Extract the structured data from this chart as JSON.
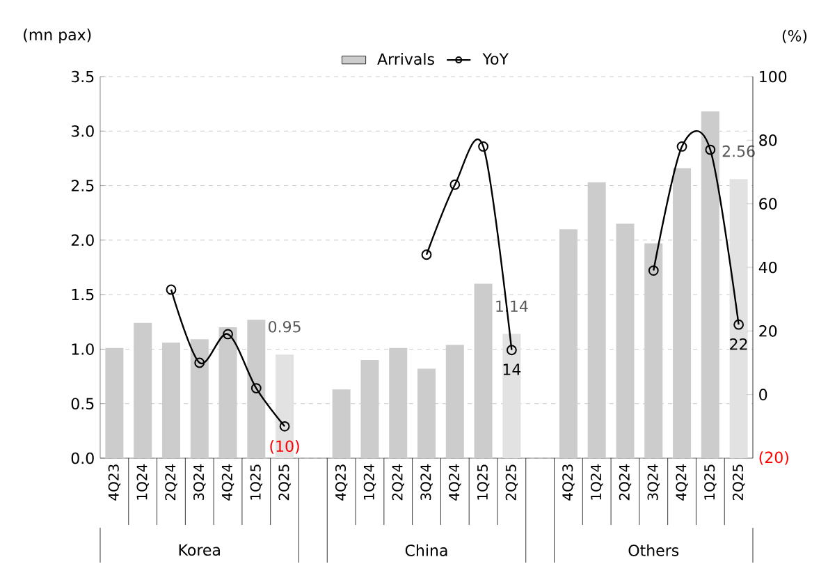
{
  "chart_data": {
    "type": "bar",
    "ylabel": "(mn pax)",
    "y2label": "(%)",
    "categories": [
      "4Q23",
      "1Q24",
      "2Q24",
      "3Q24",
      "4Q24",
      "1Q25",
      "2Q25",
      null,
      "4Q23",
      "1Q24",
      "2Q24",
      "3Q24",
      "4Q24",
      "1Q25",
      "2Q25",
      null,
      "4Q23",
      "1Q24",
      "2Q24",
      "3Q24",
      "4Q24",
      "1Q25",
      "2Q25"
    ],
    "annotations": [
      "Korea",
      "China",
      "Others"
    ],
    "series": [
      {
        "name": "Arrivals",
        "type": "bar",
        "colors": [
          "#cccccc",
          "#cccccc",
          "#cccccc",
          "#cccccc",
          "#cccccc",
          "#cccccc",
          "#e2e2e2",
          null,
          "#cccccc",
          "#cccccc",
          "#cccccc",
          "#cccccc",
          "#cccccc",
          "#cccccc",
          "#e2e2e2",
          null,
          "#cccccc",
          "#cccccc",
          "#cccccc",
          "#cccccc",
          "#cccccc",
          "#cccccc",
          "#e2e2e2"
        ],
        "values": [
          1.01,
          1.24,
          1.06,
          1.09,
          1.2,
          1.27,
          0.95,
          null,
          0.63,
          0.9,
          1.01,
          0.82,
          1.04,
          1.6,
          1.14,
          null,
          2.1,
          2.53,
          2.15,
          1.97,
          2.66,
          3.18,
          2.56
        ],
        "value_labels": [
          null,
          null,
          null,
          null,
          null,
          null,
          "0.95",
          null,
          null,
          null,
          null,
          null,
          null,
          null,
          "1.14",
          null,
          null,
          null,
          null,
          null,
          null,
          null,
          "2.56"
        ]
      },
      {
        "name": "YoY",
        "type": "line",
        "axis": "y2",
        "color": "#000000",
        "values": [
          null,
          null,
          33,
          10,
          19,
          2,
          -10,
          null,
          null,
          null,
          null,
          44,
          66,
          78,
          14,
          null,
          null,
          null,
          null,
          39,
          78,
          77,
          22
        ],
        "value_labels": [
          null,
          null,
          null,
          null,
          null,
          null,
          "(10)",
          null,
          null,
          null,
          null,
          null,
          null,
          null,
          "14",
          null,
          null,
          null,
          null,
          null,
          null,
          null,
          "22"
        ]
      }
    ],
    "ylim": [
      0,
      3.5
    ],
    "yticks": [
      {
        "value": 0,
        "label": "0.0"
      },
      0.5,
      {
        "value": 1,
        "label": "1.0"
      },
      1.5,
      {
        "value": 2,
        "label": "2.0"
      },
      2.5,
      {
        "value": 3,
        "label": "3.0"
      },
      3.5
    ],
    "y2lim": [
      -20,
      100
    ],
    "y2ticks": [
      {
        "value": -20,
        "label": "(20)"
      },
      0,
      20,
      40,
      60,
      80,
      100
    ],
    "grid": "y",
    "legend": "top",
    "marker": "circle",
    "line_style": "solid"
  }
}
